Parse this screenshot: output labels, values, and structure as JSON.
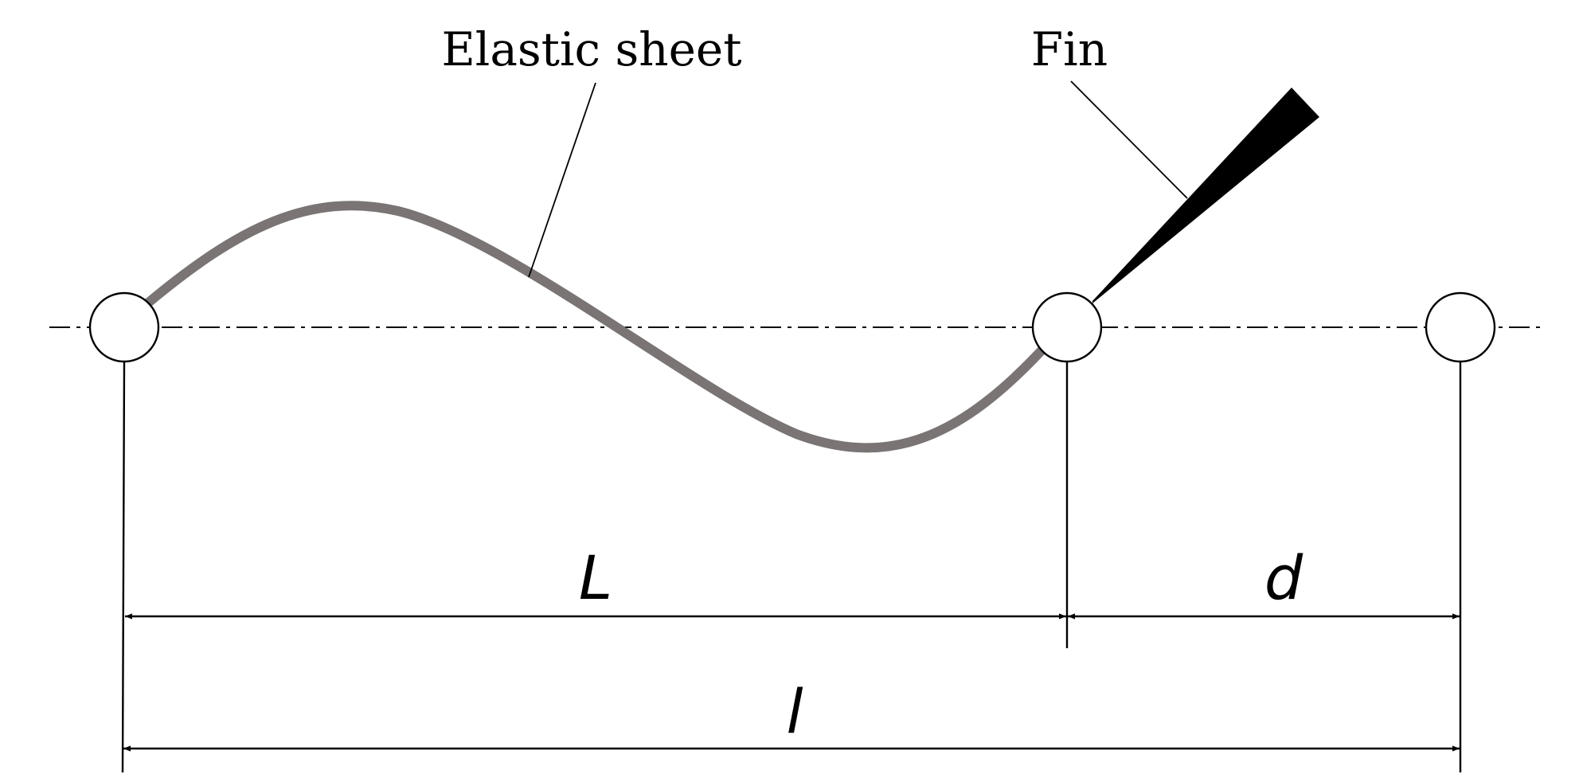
{
  "labels": {
    "sheet": "Elastic sheet",
    "fin": "Fin",
    "L": "L",
    "d": "d",
    "l": "l"
  },
  "colors": {
    "sheet": "#7a7474",
    "ink": "#000000",
    "background": "#ffffff"
  }
}
